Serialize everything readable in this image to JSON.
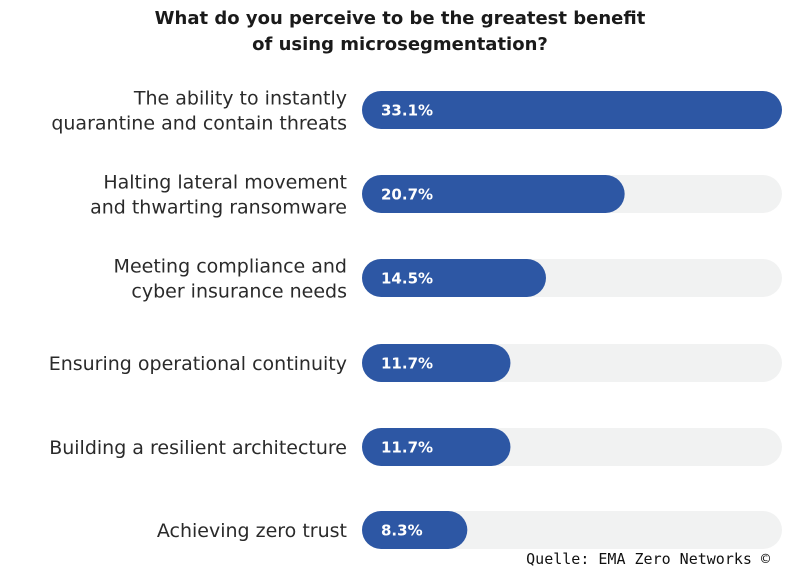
{
  "chart_data": {
    "type": "bar",
    "orientation": "horizontal",
    "title": [
      "What do you perceive to be the greatest benefit",
      "of using microsegmentation?"
    ],
    "categories": [
      [
        "The ability to instantly",
        "quarantine and contain threats"
      ],
      [
        "Halting lateral movement",
        "and thwarting ransomware"
      ],
      [
        "Meeting compliance and",
        "cyber insurance needs"
      ],
      [
        "Ensuring operational continuity"
      ],
      [
        "Building a resilient architecture"
      ],
      [
        "Achieving zero trust"
      ]
    ],
    "values": [
      33.1,
      20.7,
      14.5,
      11.7,
      11.7,
      8.3
    ],
    "value_labels": [
      "33.1%",
      "20.7%",
      "14.5%",
      "11.7%",
      "11.7%",
      "8.3%"
    ],
    "xlim": [
      0,
      33.1
    ],
    "grid": false,
    "legend": "none",
    "colors": {
      "bar": "#2d57a4",
      "track": "#f1f2f2"
    }
  },
  "source": "Quelle: EMA Zero Networks ©"
}
